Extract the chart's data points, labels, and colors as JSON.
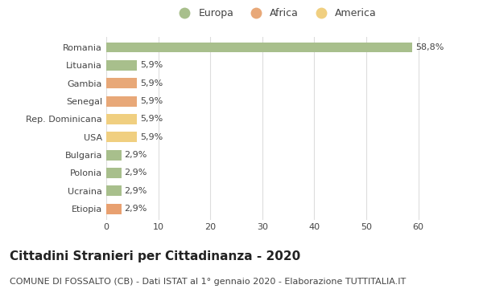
{
  "categories": [
    "Romania",
    "Lituania",
    "Gambia",
    "Senegal",
    "Rep. Dominicana",
    "USA",
    "Bulgaria",
    "Polonia",
    "Ucraina",
    "Etiopia"
  ],
  "values": [
    58.8,
    5.9,
    5.9,
    5.9,
    5.9,
    5.9,
    2.9,
    2.9,
    2.9,
    2.9
  ],
  "labels": [
    "58,8%",
    "5,9%",
    "5,9%",
    "5,9%",
    "5,9%",
    "5,9%",
    "2,9%",
    "2,9%",
    "2,9%",
    "2,9%"
  ],
  "colors": [
    "#a8bf8c",
    "#a8bf8c",
    "#e8a878",
    "#e8a878",
    "#f0cf80",
    "#f0cf80",
    "#a8bf8c",
    "#a8bf8c",
    "#a8bf8c",
    "#e8a070"
  ],
  "legend": [
    {
      "label": "Europa",
      "color": "#a8bf8c"
    },
    {
      "label": "Africa",
      "color": "#e8a878"
    },
    {
      "label": "America",
      "color": "#f0cf80"
    }
  ],
  "title": "Cittadini Stranieri per Cittadinanza - 2020",
  "subtitle": "COMUNE DI FOSSALTO (CB) - Dati ISTAT al 1° gennaio 2020 - Elaborazione TUTTITALIA.IT",
  "xlim": [
    0,
    65
  ],
  "xticks": [
    0,
    10,
    20,
    30,
    40,
    50,
    60
  ],
  "background_color": "#ffffff",
  "grid_color": "#dddddd",
  "title_fontsize": 11,
  "subtitle_fontsize": 8,
  "label_fontsize": 8,
  "tick_fontsize": 8
}
